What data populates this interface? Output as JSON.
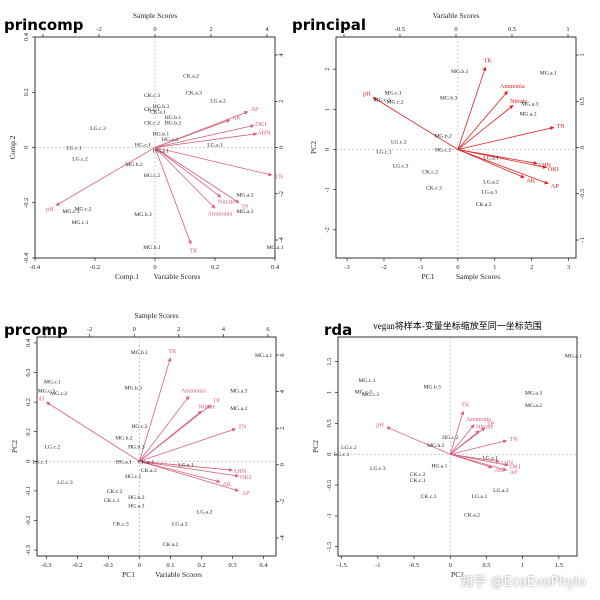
{
  "watermark": "知乎 @EcoEvoPhylo",
  "colors": {
    "vector_red": "#e02020",
    "vector_pink": "#d9607a",
    "axis": "#000000"
  },
  "chart_data": [
    {
      "id": "princomp",
      "type": "scatter",
      "panel_title": "princomp",
      "title": "",
      "top_label": "Sample Scores",
      "bottom_label": "Comp.1",
      "bottom_label2": "Variable Scores",
      "left_label": "Comp.2",
      "xlim": [
        -0.4,
        0.4
      ],
      "ylim": [
        -0.4,
        0.4
      ],
      "x_ticks": [
        -0.4,
        -0.2,
        0.0,
        0.2,
        0.4
      ],
      "y_ticks": [
        -0.4,
        -0.2,
        0.0,
        0.2,
        0.4
      ],
      "top_ticks": [
        -4,
        -2,
        0,
        2,
        4
      ],
      "right_ticks": [
        -4,
        -2,
        0,
        2,
        4
      ],
      "color": "#d9607a",
      "samples": [
        {
          "label": "CK.a.2",
          "x": 0.12,
          "y": 0.26
        },
        {
          "label": "CK.a.3",
          "x": 0.13,
          "y": 0.2
        },
        {
          "label": "LG.a.2",
          "x": 0.21,
          "y": 0.17
        },
        {
          "label": "CK.c.3",
          "x": -0.01,
          "y": 0.19
        },
        {
          "label": "HG.b.3",
          "x": 0.02,
          "y": 0.15
        },
        {
          "label": "CK.a.1",
          "x": 0.01,
          "y": 0.13
        },
        {
          "label": "HG.b.1",
          "x": 0.06,
          "y": 0.11
        },
        {
          "label": "HG.b.2",
          "x": 0.06,
          "y": 0.09
        },
        {
          "label": "CK.c.1",
          "x": -0.01,
          "y": 0.14
        },
        {
          "label": "CK.c.2",
          "x": -0.01,
          "y": 0.09
        },
        {
          "label": "LG.c.3",
          "x": -0.19,
          "y": 0.07
        },
        {
          "label": "HG.b.1",
          "x": 0.02,
          "y": 0.05
        },
        {
          "label": "HG.a.3",
          "x": 0.05,
          "y": 0.03
        },
        {
          "label": "HG.c.1",
          "x": -0.04,
          "y": 0.01
        },
        {
          "label": "HG.a.1",
          "x": 0.02,
          "y": -0.01
        },
        {
          "label": "LG.a.1",
          "x": 0.2,
          "y": 0.01
        },
        {
          "label": "LG.c.1",
          "x": -0.27,
          "y": 0.0
        },
        {
          "label": "LG.c.2",
          "x": -0.25,
          "y": -0.04
        },
        {
          "label": "MG.b.2",
          "x": -0.07,
          "y": -0.06
        },
        {
          "label": "HG.c.2",
          "x": -0.01,
          "y": -0.1
        },
        {
          "label": "MG.a.2",
          "x": 0.3,
          "y": -0.17
        },
        {
          "label": "MG.c.2",
          "x": -0.24,
          "y": -0.22
        },
        {
          "label": "MG.c.3",
          "x": -0.28,
          "y": -0.23
        },
        {
          "label": "MG.c.1",
          "x": -0.25,
          "y": -0.27
        },
        {
          "label": "MG.b.3",
          "x": -0.04,
          "y": -0.24
        },
        {
          "label": "MG.a.3",
          "x": 0.3,
          "y": -0.23
        },
        {
          "label": "MG.b.1",
          "x": -0.01,
          "y": -0.36
        },
        {
          "label": "MG.a.1",
          "x": 0.4,
          "y": -0.36
        }
      ],
      "variables": [
        {
          "label": "AP",
          "x": 0.31,
          "y": 0.13
        },
        {
          "label": "AK",
          "x": 0.25,
          "y": 0.1
        },
        {
          "label": "OKI",
          "x": 0.33,
          "y": 0.08
        },
        {
          "label": "AHN",
          "x": 0.34,
          "y": 0.05
        },
        {
          "label": "TN",
          "x": 0.39,
          "y": -0.1
        },
        {
          "label": "Nitrate",
          "x": 0.22,
          "y": -0.18
        },
        {
          "label": "TP",
          "x": 0.28,
          "y": -0.2
        },
        {
          "label": "Ammonia",
          "x": 0.2,
          "y": -0.22
        },
        {
          "label": "TK",
          "x": 0.12,
          "y": -0.35
        },
        {
          "label": "pH",
          "x": -0.33,
          "y": -0.21
        }
      ]
    },
    {
      "id": "principal",
      "type": "scatter",
      "panel_title": "principal",
      "title": "",
      "top_label": "Variable Scores",
      "bottom_label": "PC1",
      "bottom_label2": "Sample Scores",
      "left_label": "PC2",
      "xlim": [
        -3.3,
        3.2
      ],
      "ylim": [
        -2.7,
        2.8
      ],
      "x_ticks": [
        -3,
        -2,
        -1,
        0,
        1,
        2,
        3
      ],
      "y_ticks": [
        -2,
        -1,
        0,
        1,
        2
      ],
      "top_ticks": [
        -1.0,
        -0.5,
        0.0,
        0.5,
        1.0
      ],
      "right_ticks": [
        -1.0,
        -0.5,
        0.0,
        0.5,
        1.0
      ],
      "color": "#e02020",
      "samples": [
        {
          "label": "MG.b.1",
          "x": 0.05,
          "y": 1.95
        },
        {
          "label": "MG.a.1",
          "x": 2.45,
          "y": 1.92
        },
        {
          "label": "MG.c.1",
          "x": -1.75,
          "y": 1.42
        },
        {
          "label": "MG.c.3",
          "x": -2.05,
          "y": 1.25
        },
        {
          "label": "MG.c.2",
          "x": -1.7,
          "y": 1.2
        },
        {
          "label": "MG.b.3",
          "x": -0.25,
          "y": 1.3
        },
        {
          "label": "MG.a.3",
          "x": 1.95,
          "y": 1.15
        },
        {
          "label": "MG.a.2",
          "x": 1.9,
          "y": 0.9
        },
        {
          "label": "LG.c.2",
          "x": -1.6,
          "y": 0.2
        },
        {
          "label": "LG.c.1",
          "x": -2.0,
          "y": -0.05
        },
        {
          "label": "MG.b.2",
          "x": -0.4,
          "y": 0.35
        },
        {
          "label": "HG.c.2",
          "x": -0.4,
          "y": 0.0
        },
        {
          "label": "LG.c.3",
          "x": -1.55,
          "y": -0.4
        },
        {
          "label": "CK.c.2",
          "x": -0.75,
          "y": -0.55
        },
        {
          "label": "CK.c.3",
          "x": -0.65,
          "y": -0.95
        },
        {
          "label": "LG.a.1",
          "x": 0.9,
          "y": -0.2
        },
        {
          "label": "LG.a.2",
          "x": 0.9,
          "y": -0.8
        },
        {
          "label": "LG.a.3",
          "x": 0.85,
          "y": -1.05
        },
        {
          "label": "CK.a.2",
          "x": 0.7,
          "y": -1.35
        }
      ],
      "variables": [
        {
          "label": "TK",
          "x": 0.75,
          "y": 2.05
        },
        {
          "label": "Ammonia",
          "x": 1.35,
          "y": 1.45
        },
        {
          "label": "Nitrate",
          "x": 1.5,
          "y": 1.1
        },
        {
          "label": "TN",
          "x": 2.6,
          "y": 0.55
        },
        {
          "label": "pH",
          "x": -2.3,
          "y": 1.3
        },
        {
          "label": "AHN",
          "x": 2.15,
          "y": -0.35
        },
        {
          "label": "OKI",
          "x": 2.4,
          "y": -0.45
        },
        {
          "label": "AK",
          "x": 1.8,
          "y": -0.7
        },
        {
          "label": "AP",
          "x": 2.45,
          "y": -0.85
        }
      ]
    },
    {
      "id": "prcomp",
      "type": "scatter",
      "panel_title": "prcomp",
      "title": "",
      "top_label": "Sample Scores",
      "bottom_label": "PC1",
      "bottom_label2": "Variable Scores",
      "left_label": "PC2",
      "xlim": [
        -0.33,
        0.44
      ],
      "ylim": [
        -0.32,
        0.42
      ],
      "x_ticks": [
        -0.3,
        -0.2,
        -0.1,
        0.0,
        0.1,
        0.2,
        0.3,
        0.4
      ],
      "y_ticks": [
        -0.3,
        -0.2,
        -0.1,
        0.0,
        0.1,
        0.2,
        0.3,
        0.4
      ],
      "top_ticks": [
        -4,
        -2,
        0,
        2,
        4,
        6
      ],
      "right_ticks": [
        -4,
        -2,
        0,
        2,
        4,
        6
      ],
      "color": "#d9607a",
      "samples": [
        {
          "label": "MG.b.1",
          "x": 0.0,
          "y": 0.37
        },
        {
          "label": "MG.a.1",
          "x": 0.4,
          "y": 0.36
        },
        {
          "label": "MG.c.1",
          "x": -0.28,
          "y": 0.27
        },
        {
          "label": "MG.c.3",
          "x": -0.3,
          "y": 0.24
        },
        {
          "label": "MG.c.2",
          "x": -0.26,
          "y": 0.23
        },
        {
          "label": "MG.b.3",
          "x": -0.02,
          "y": 0.25
        },
        {
          "label": "MG.a.3",
          "x": 0.32,
          "y": 0.24
        },
        {
          "label": "MG.a.2",
          "x": 0.32,
          "y": 0.18
        },
        {
          "label": "HG.c.2",
          "x": 0.0,
          "y": 0.12
        },
        {
          "label": "MG.b.2",
          "x": -0.05,
          "y": 0.08
        },
        {
          "label": "LG.c.2",
          "x": -0.28,
          "y": 0.05
        },
        {
          "label": "LG.c.1",
          "x": -0.32,
          "y": 0.0
        },
        {
          "label": "LG.c.3",
          "x": -0.24,
          "y": -0.07
        },
        {
          "label": "HG.b.3",
          "x": -0.01,
          "y": 0.05
        },
        {
          "label": "CK.a.1",
          "x": 0.02,
          "y": 0.0
        },
        {
          "label": "HG.a.1",
          "x": -0.05,
          "y": 0.0
        },
        {
          "label": "LG.a.1",
          "x": 0.15,
          "y": -0.01
        },
        {
          "label": "CK.a.3",
          "x": 0.03,
          "y": -0.03
        },
        {
          "label": "HG.c.1",
          "x": -0.02,
          "y": -0.05
        },
        {
          "label": "CK.c.2",
          "x": -0.08,
          "y": -0.1
        },
        {
          "label": "CK.c.1",
          "x": -0.09,
          "y": -0.13
        },
        {
          "label": "HG.b.2",
          "x": -0.01,
          "y": -0.12
        },
        {
          "label": "HG.a.3",
          "x": -0.01,
          "y": -0.15
        },
        {
          "label": "LG.a.2",
          "x": 0.21,
          "y": -0.17
        },
        {
          "label": "CK.c.3",
          "x": -0.06,
          "y": -0.21
        },
        {
          "label": "LG.a.3",
          "x": 0.13,
          "y": -0.21
        },
        {
          "label": "CK.a.2",
          "x": 0.1,
          "y": -0.28
        }
      ],
      "variables": [
        {
          "label": "TK",
          "x": 0.1,
          "y": 0.35
        },
        {
          "label": "Ammonia",
          "x": 0.16,
          "y": 0.22
        },
        {
          "label": "TP",
          "x": 0.23,
          "y": 0.19
        },
        {
          "label": "Nitrate",
          "x": 0.2,
          "y": 0.17
        },
        {
          "label": "TN",
          "x": 0.31,
          "y": 0.11
        },
        {
          "label": "pH",
          "x": -0.3,
          "y": 0.2
        },
        {
          "label": "AHN",
          "x": 0.3,
          "y": -0.03
        },
        {
          "label": "OKI",
          "x": 0.32,
          "y": -0.05
        },
        {
          "label": "AK",
          "x": 0.26,
          "y": -0.07
        },
        {
          "label": "AP",
          "x": 0.32,
          "y": -0.1
        }
      ]
    },
    {
      "id": "rda",
      "type": "scatter",
      "panel_title": "rda",
      "title": "vegan将样本-变量坐标缩放至同一坐标范围",
      "top_label": "",
      "bottom_label": "PC1",
      "bottom_label2": "",
      "left_label": "PC2",
      "xlim": [
        -1.55,
        1.75
      ],
      "ylim": [
        -1.65,
        1.9
      ],
      "x_ticks": [
        -1.5,
        -1.0,
        -0.5,
        0.0,
        0.5,
        1.0,
        1.5
      ],
      "y_ticks": [
        -1.5,
        -1.0,
        -0.5,
        0.0,
        0.5,
        1.0,
        1.5
      ],
      "top_ticks": [],
      "right_ticks": [],
      "color": "#d9607a",
      "samples": [
        {
          "label": "MG.a.1",
          "x": 1.7,
          "y": 1.6
        },
        {
          "label": "MG.c.1",
          "x": -1.15,
          "y": 1.2
        },
        {
          "label": "MG.c.3",
          "x": -1.2,
          "y": 1.02
        },
        {
          "label": "MG.c.2",
          "x": -1.1,
          "y": 0.98
        },
        {
          "label": "MG.b.3",
          "x": -0.25,
          "y": 1.1
        },
        {
          "label": "MG.a.3",
          "x": 1.15,
          "y": 1.0
        },
        {
          "label": "MG.a.2",
          "x": 1.15,
          "y": 0.8
        },
        {
          "label": "HG.c.2",
          "x": 0.0,
          "y": 0.28
        },
        {
          "label": "MG.b.2",
          "x": -0.2,
          "y": 0.15
        },
        {
          "label": "LG.c.2",
          "x": -1.4,
          "y": 0.12
        },
        {
          "label": "LG.c.1",
          "x": -1.5,
          "y": 0.0
        },
        {
          "label": "LG.c.3",
          "x": -1.0,
          "y": -0.22
        },
        {
          "label": "LG.a.1",
          "x": 0.55,
          "y": -0.05
        },
        {
          "label": "HG.a.1",
          "x": -0.15,
          "y": -0.18
        },
        {
          "label": "CK.c.2",
          "x": -0.45,
          "y": -0.32
        },
        {
          "label": "CK.c.1",
          "x": -0.45,
          "y": -0.42
        },
        {
          "label": "LG.a.2",
          "x": 0.7,
          "y": -0.58
        },
        {
          "label": "CK.c.3",
          "x": -0.3,
          "y": -0.68
        },
        {
          "label": "LG.a.3",
          "x": 0.4,
          "y": -0.68
        },
        {
          "label": "CK.a.2",
          "x": 0.3,
          "y": -0.98
        }
      ],
      "variables": [
        {
          "label": "TK",
          "x": 0.18,
          "y": 0.7
        },
        {
          "label": "Ammonia",
          "x": 0.33,
          "y": 0.48
        },
        {
          "label": "TP",
          "x": 0.48,
          "y": 0.43
        },
        {
          "label": "Nitrate",
          "x": 0.4,
          "y": 0.38
        },
        {
          "label": "TN",
          "x": 0.78,
          "y": 0.22
        },
        {
          "label": "pH",
          "x": -0.88,
          "y": 0.44
        },
        {
          "label": "AHN",
          "x": 0.68,
          "y": -0.12
        },
        {
          "label": "OKI",
          "x": 0.8,
          "y": -0.18
        },
        {
          "label": "AK",
          "x": 0.58,
          "y": -0.22
        },
        {
          "label": "AP",
          "x": 0.78,
          "y": -0.26
        }
      ]
    }
  ]
}
